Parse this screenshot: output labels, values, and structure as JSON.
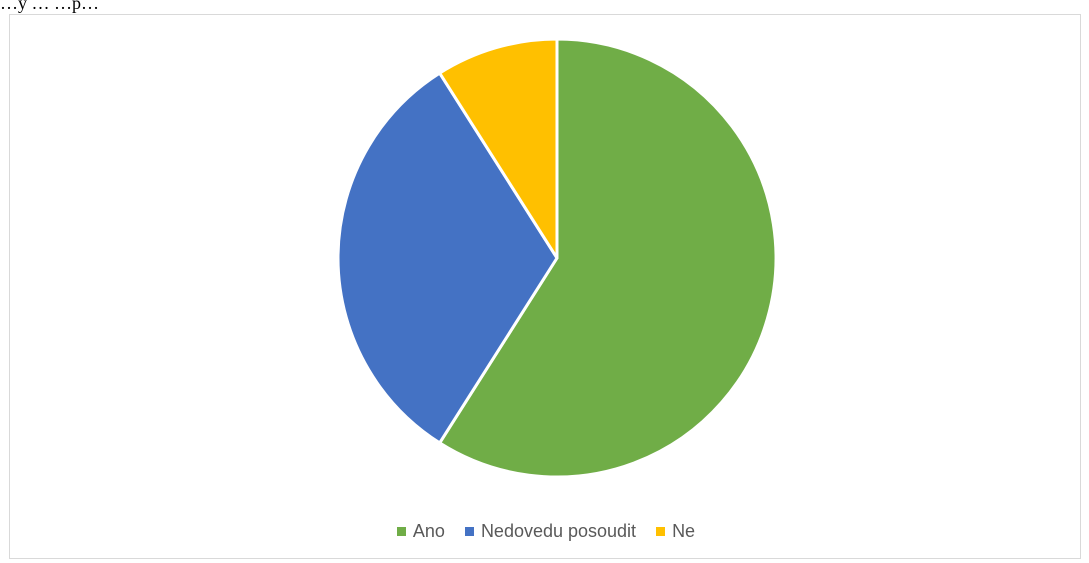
{
  "top_text": "…y … …p…",
  "chart_data": {
    "type": "pie",
    "title": "",
    "slices": [
      {
        "label": "Ano",
        "value": 59,
        "color": "#70ad47"
      },
      {
        "label": "Nedovedu posoudit",
        "value": 32,
        "color": "#4472c4"
      },
      {
        "label": "Ne",
        "value": 9,
        "color": "#ffc000"
      }
    ],
    "legend_position": "bottom",
    "slice_border_color": "#ffffff"
  }
}
